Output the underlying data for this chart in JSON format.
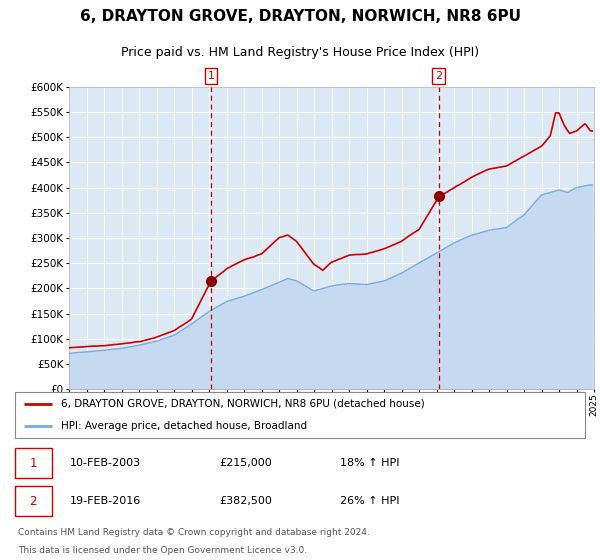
{
  "title": "6, DRAYTON GROVE, DRAYTON, NORWICH, NR8 6PU",
  "subtitle": "Price paid vs. HM Land Registry's House Price Index (HPI)",
  "red_line_label": "6, DRAYTON GROVE, DRAYTON, NORWICH, NR8 6PU (detached house)",
  "blue_line_label": "HPI: Average price, detached house, Broadland",
  "transaction1": {
    "label": "1",
    "date": "10-FEB-2003",
    "price": "£215,000",
    "hpi": "18% ↑ HPI",
    "year": 2003.11
  },
  "transaction2": {
    "label": "2",
    "date": "19-FEB-2016",
    "price": "£382,500",
    "hpi": "26% ↑ HPI",
    "year": 2016.13
  },
  "footnote1": "Contains HM Land Registry data © Crown copyright and database right 2024.",
  "footnote2": "This data is licensed under the Open Government Licence v3.0.",
  "xmin": 1995,
  "xmax": 2025,
  "ymin": 0,
  "ymax": 600000,
  "background_color": "#dce9f5",
  "red_color": "#cc0000",
  "blue_color": "#7aacdb",
  "blue_fill_color": "#c5daf0",
  "grid_color": "#ffffff",
  "vline_color": "#cc0000",
  "marker_color": "#8b0000",
  "title_fontsize": 11,
  "subtitle_fontsize": 9,
  "axis_fontsize": 7,
  "legend_fontsize": 8,
  "footnote_fontsize": 7
}
